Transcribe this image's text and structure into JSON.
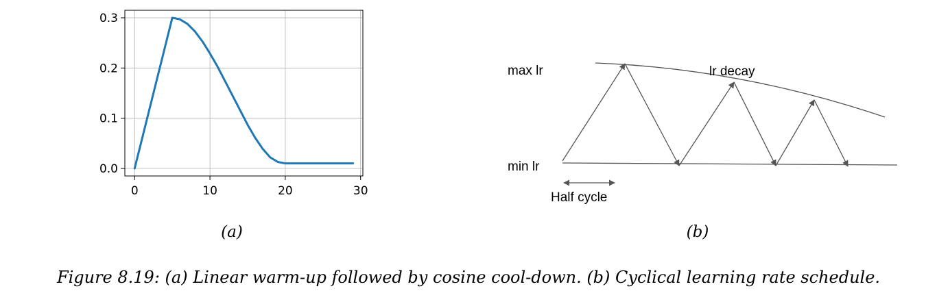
{
  "chart_data": [
    {
      "type": "line",
      "panel_label": "(a)",
      "x": [
        0,
        1,
        2,
        3,
        4,
        5,
        6,
        7,
        8,
        9,
        10,
        11,
        12,
        13,
        14,
        15,
        16,
        17,
        18,
        19,
        20,
        21,
        22,
        23,
        24,
        25,
        26,
        27,
        28,
        29
      ],
      "series": [
        {
          "color": "#1f77b4",
          "values": [
            0.0,
            0.06,
            0.12,
            0.18,
            0.24,
            0.3,
            0.297,
            0.288,
            0.273,
            0.253,
            0.229,
            0.203,
            0.174,
            0.145,
            0.116,
            0.087,
            0.061,
            0.039,
            0.022,
            0.013,
            0.01,
            0.01,
            0.01,
            0.01,
            0.01,
            0.01,
            0.01,
            0.01,
            0.01,
            0.01
          ]
        }
      ],
      "xlim": [
        -1.3,
        30.3
      ],
      "ylim": [
        -0.015,
        0.315
      ],
      "xticks": [
        0,
        10,
        20,
        30
      ],
      "xtick_labels": [
        "0",
        "10",
        "20",
        "30"
      ],
      "yticks": [
        0.0,
        0.1,
        0.2,
        0.3
      ],
      "ytick_labels": [
        "0.0",
        "0.1",
        "0.2",
        "0.3"
      ],
      "grid": true,
      "title": "",
      "xlabel": "",
      "ylabel": ""
    }
  ],
  "diagram": {
    "panel_label": "(b)",
    "max_label": "max lr",
    "min_label": "min lr",
    "decay_label": "lr decay",
    "half_cycle_label": "Half cycle"
  },
  "caption": "Figure 8.19: (a) Linear warm-up followed by cosine cool-down. (b) Cyclical learning rate schedule.",
  "colors": {
    "line": "#1f77b4",
    "grid": "#b0b0b0",
    "arrow": "#555555"
  }
}
